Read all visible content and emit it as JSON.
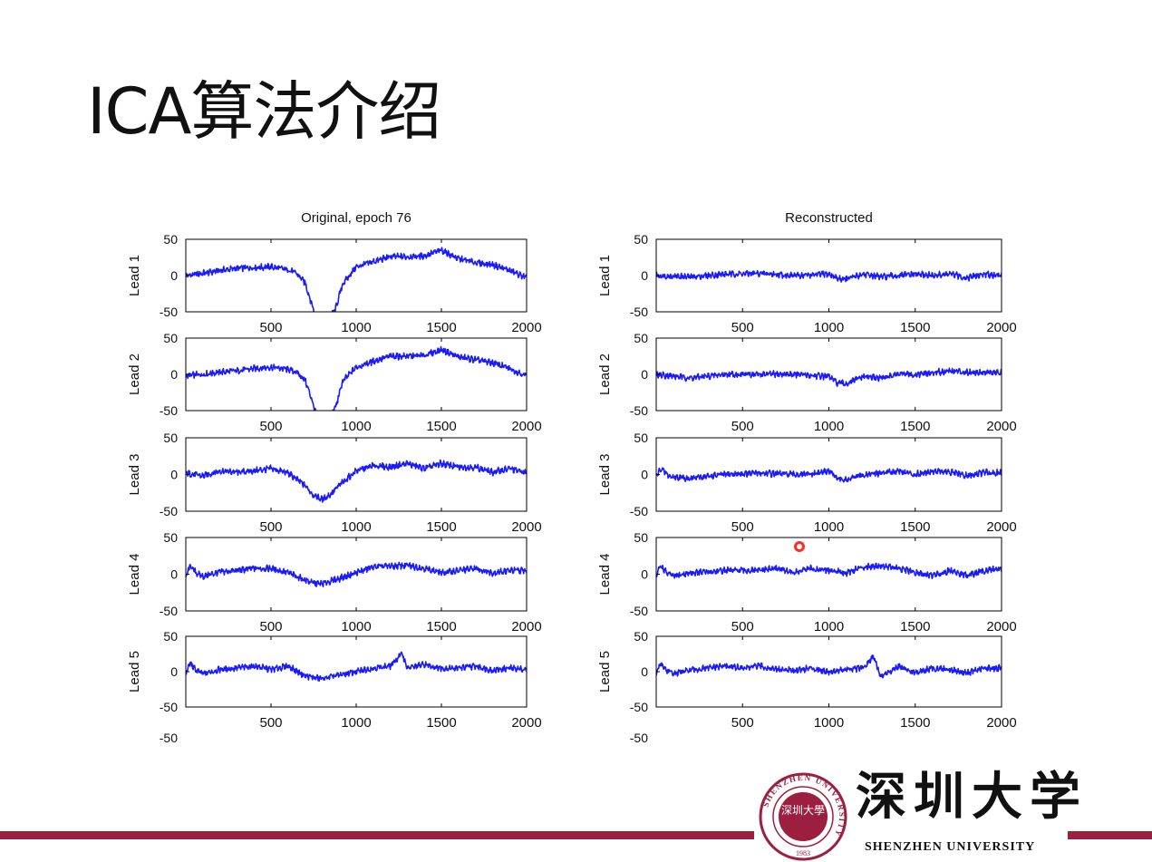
{
  "slide": {
    "title": "ICA算法介绍"
  },
  "logo": {
    "cn_name": "深圳大学",
    "en_name": "SHENZHEN UNIVERSITY",
    "seal_ring_text": "SHENZHEN UNIVERSITY",
    "seal_year": "1983",
    "seal_center": "深圳大學",
    "brand_color": "#9c1f3f"
  },
  "colors": {
    "trace": "#1a1aff",
    "axes": "#000000",
    "cursor_marker": "#ff2a2a"
  },
  "chart_data": [
    {
      "type": "line",
      "title": "Original, epoch 76",
      "panels": [
        {
          "ylabel": "Lead 1",
          "ylim": [
            -50,
            50
          ],
          "xlim": [
            0,
            2000
          ],
          "xticks": [
            "500",
            "1000",
            "1500",
            "2000"
          ],
          "yticks": [
            "50",
            "0",
            "-50"
          ],
          "series": [
            {
              "x": [
                0,
                100,
                200,
                300,
                400,
                500,
                600,
                650,
                700,
                740,
                760,
                800,
                880,
                920,
                1000,
                1100,
                1200,
                1300,
                1400,
                1500,
                1600,
                1700,
                1800,
                1900,
                2000
              ],
              "y": [
                0,
                3,
                7,
                10,
                11,
                12,
                8,
                3,
                -10,
                -40,
                -55,
                -75,
                -45,
                -12,
                12,
                19,
                26,
                26,
                27,
                35,
                23,
                18,
                15,
                7,
                -3
              ]
            }
          ]
        },
        {
          "ylabel": "Lead 2",
          "ylim": [
            -50,
            50
          ],
          "xlim": [
            0,
            2000
          ],
          "xticks": [
            "500",
            "1000",
            "1500",
            "2000"
          ],
          "yticks": [
            "50",
            "0",
            "-50"
          ],
          "series": [
            {
              "x": [
                0,
                100,
                200,
                300,
                400,
                500,
                600,
                650,
                700,
                740,
                760,
                800,
                880,
                920,
                1000,
                1100,
                1200,
                1300,
                1400,
                1500,
                1600,
                1700,
                1800,
                1900,
                2000
              ],
              "y": [
                -2,
                0,
                3,
                5,
                8,
                10,
                7,
                3,
                -8,
                -35,
                -52,
                -75,
                -45,
                -10,
                10,
                18,
                25,
                25,
                26,
                34,
                24,
                20,
                16,
                8,
                -2
              ]
            }
          ]
        },
        {
          "ylabel": "Lead 3",
          "ylim": [
            -50,
            50
          ],
          "xlim": [
            0,
            2000
          ],
          "xticks": [
            "500",
            "1000",
            "1500",
            "2000"
          ],
          "yticks": [
            "50",
            "0",
            "-50"
          ],
          "series": [
            {
              "x": [
                0,
                100,
                200,
                300,
                400,
                500,
                600,
                700,
                750,
                800,
                850,
                900,
                1000,
                1100,
                1200,
                1300,
                1400,
                1500,
                1600,
                1700,
                1800,
                1900,
                2000
              ],
              "y": [
                2,
                -2,
                5,
                3,
                5,
                8,
                2,
                -15,
                -28,
                -34,
                -27,
                -15,
                5,
                12,
                10,
                15,
                8,
                15,
                10,
                10,
                3,
                8,
                2
              ]
            }
          ]
        },
        {
          "ylabel": "Lead 4",
          "ylim": [
            -50,
            50
          ],
          "xlim": [
            0,
            2000
          ],
          "xticks": [
            "500",
            "1000",
            "1500",
            "2000"
          ],
          "yticks": [
            "50",
            "0",
            "-50"
          ],
          "series": [
            {
              "x": [
                0,
                25,
                60,
                100,
                200,
                300,
                400,
                500,
                600,
                700,
                750,
                800,
                900,
                1000,
                1100,
                1200,
                1300,
                1400,
                1500,
                1600,
                1700,
                1800,
                1900,
                2000
              ],
              "y": [
                -5,
                12,
                2,
                -3,
                3,
                5,
                8,
                8,
                2,
                -8,
                -12,
                -13,
                -6,
                2,
                10,
                11,
                12,
                8,
                2,
                5,
                8,
                2,
                5,
                5
              ]
            }
          ]
        },
        {
          "ylabel": "Lead 5",
          "ylim": [
            -50,
            50
          ],
          "xlim": [
            0,
            2000
          ],
          "xticks": [
            "500",
            "1000",
            "1500",
            "2000"
          ],
          "yticks": [
            "50",
            "0",
            "-50",
            "-50"
          ],
          "series": [
            {
              "x": [
                0,
                25,
                60,
                100,
                200,
                300,
                400,
                500,
                600,
                700,
                800,
                900,
                1000,
                1100,
                1200,
                1270,
                1300,
                1400,
                1500,
                1600,
                1700,
                1800,
                1900,
                2000
              ],
              "y": [
                -3,
                12,
                2,
                -3,
                3,
                5,
                8,
                3,
                8,
                -6,
                -10,
                -5,
                0,
                5,
                8,
                26,
                5,
                10,
                5,
                5,
                8,
                2,
                5,
                3
              ]
            }
          ]
        }
      ]
    },
    {
      "type": "line",
      "title": "Reconstructed",
      "panels": [
        {
          "ylabel": "Lead 1",
          "ylim": [
            -50,
            50
          ],
          "xlim": [
            0,
            2000
          ],
          "xticks": [
            "500",
            "1000",
            "1500",
            "2000"
          ],
          "yticks": [
            "50",
            "0",
            "-50"
          ],
          "series": [
            {
              "x": [
                0,
                200,
                400,
                600,
                800,
                1000,
                1050,
                1100,
                1200,
                1300,
                1400,
                1500,
                1600,
                1700,
                1800,
                1900,
                2000
              ],
              "y": [
                0,
                -2,
                2,
                3,
                0,
                2,
                -4,
                -5,
                2,
                -2,
                0,
                2,
                0,
                2,
                -3,
                2,
                0
              ]
            }
          ]
        },
        {
          "ylabel": "Lead 2",
          "ylim": [
            -50,
            50
          ],
          "xlim": [
            0,
            2000
          ],
          "xticks": [
            "500",
            "1000",
            "1500",
            "2000"
          ],
          "yticks": [
            "50",
            "0",
            "-50"
          ],
          "series": [
            {
              "x": [
                0,
                200,
                400,
                600,
                800,
                1000,
                1050,
                1100,
                1200,
                1300,
                1400,
                1500,
                1600,
                1700,
                1800,
                1900,
                2000
              ],
              "y": [
                0,
                -5,
                0,
                0,
                0,
                -3,
                -12,
                -13,
                -3,
                -5,
                0,
                0,
                2,
                5,
                3,
                3,
                2
              ]
            }
          ]
        },
        {
          "ylabel": "Lead 3",
          "ylim": [
            -50,
            50
          ],
          "xlim": [
            0,
            2000
          ],
          "xticks": [
            "500",
            "1000",
            "1500",
            "2000"
          ],
          "yticks": [
            "50",
            "0",
            "-50"
          ],
          "series": [
            {
              "x": [
                0,
                25,
                80,
                200,
                400,
                600,
                800,
                900,
                1000,
                1050,
                1100,
                1200,
                1300,
                1400,
                1500,
                1600,
                1700,
                1800,
                1900,
                2000
              ],
              "y": [
                -3,
                8,
                -3,
                -5,
                0,
                2,
                0,
                0,
                5,
                -5,
                -8,
                0,
                2,
                5,
                0,
                5,
                3,
                -2,
                3,
                2
              ]
            }
          ]
        },
        {
          "ylabel": "Lead 4",
          "ylim": [
            -50,
            50
          ],
          "xlim": [
            0,
            2000
          ],
          "xticks": [
            "500",
            "1000",
            "1500",
            "2000"
          ],
          "yticks": [
            "50",
            "0",
            "-50"
          ],
          "series": [
            {
              "x": [
                0,
                25,
                60,
                100,
                200,
                300,
                400,
                500,
                600,
                700,
                800,
                900,
                1000,
                1100,
                1200,
                1300,
                1400,
                1500,
                1600,
                1700,
                1800,
                1900,
                2000
              ],
              "y": [
                -3,
                12,
                2,
                -3,
                2,
                3,
                5,
                5,
                5,
                8,
                2,
                8,
                5,
                2,
                10,
                12,
                8,
                2,
                -2,
                5,
                -2,
                5,
                8
              ]
            }
          ]
        },
        {
          "ylabel": "Lead 5",
          "ylim": [
            -50,
            50
          ],
          "xlim": [
            0,
            2000
          ],
          "xticks": [
            "500",
            "1000",
            "1500",
            "2000"
          ],
          "yticks": [
            "50",
            "0",
            "-50",
            "-50"
          ],
          "series": [
            {
              "x": [
                0,
                25,
                60,
                100,
                200,
                300,
                400,
                500,
                600,
                700,
                800,
                900,
                1000,
                1100,
                1200,
                1260,
                1300,
                1400,
                1500,
                1600,
                1700,
                1800,
                1900,
                2000
              ],
              "y": [
                -3,
                12,
                2,
                -3,
                2,
                5,
                8,
                5,
                8,
                3,
                2,
                5,
                0,
                3,
                5,
                22,
                -8,
                8,
                -2,
                5,
                3,
                -2,
                5,
                5
              ]
            }
          ]
        }
      ]
    }
  ]
}
